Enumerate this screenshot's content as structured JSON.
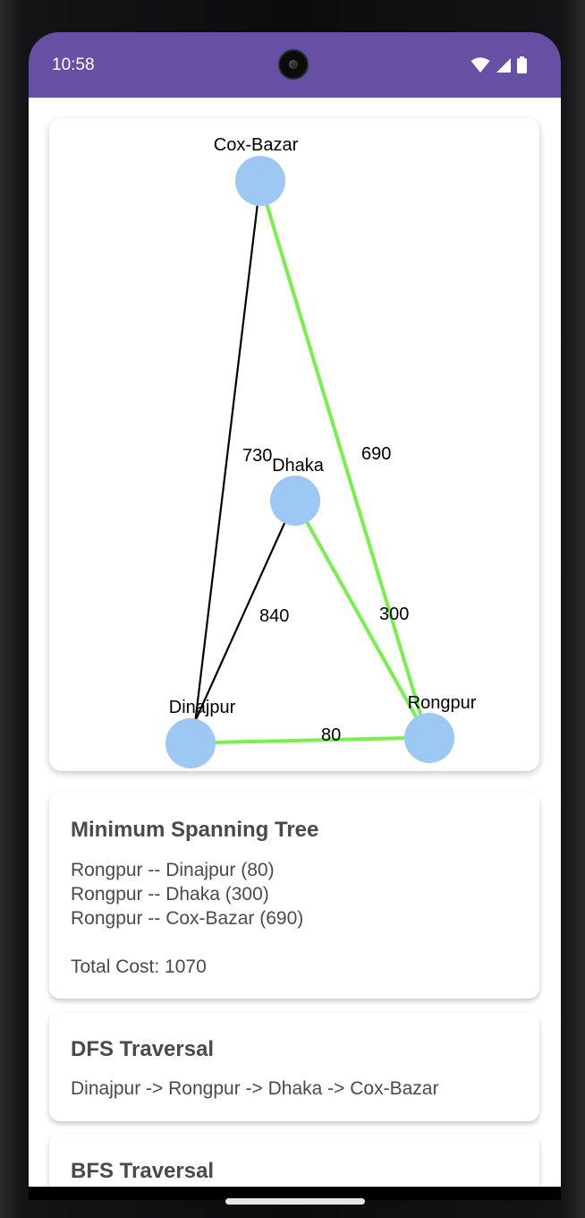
{
  "status_bar": {
    "time": "10:58"
  },
  "graph": {
    "nodes": [
      {
        "name": "Cox-Bazar"
      },
      {
        "name": "Dhaka"
      },
      {
        "name": "Dinajpur"
      },
      {
        "name": "Rongpur"
      }
    ],
    "edges": [
      {
        "from": "Dinajpur",
        "to": "Cox-Bazar",
        "weight": "730",
        "in_mst": false
      },
      {
        "from": "Rongpur",
        "to": "Cox-Bazar",
        "weight": "690",
        "in_mst": true
      },
      {
        "from": "Dinajpur",
        "to": "Dhaka",
        "weight": "840",
        "in_mst": false
      },
      {
        "from": "Dhaka",
        "to": "Rongpur",
        "weight": "300",
        "in_mst": true
      },
      {
        "from": "Dinajpur",
        "to": "Rongpur",
        "weight": "80",
        "in_mst": true
      }
    ],
    "colors": {
      "node": "#9ec8f4",
      "mst_edge": "#77f04c",
      "edge": "#000000"
    }
  },
  "mst_card": {
    "title": "Minimum Spanning Tree",
    "lines": [
      "Rongpur -- Dinajpur (80)",
      "Rongpur -- Dhaka (300)",
      "Rongpur -- Cox-Bazar (690)"
    ],
    "total": "Total Cost: 1070"
  },
  "dfs_card": {
    "title": "DFS Traversal",
    "text": "Dinajpur -> Rongpur -> Dhaka -> Cox-Bazar"
  },
  "bfs_card": {
    "title": "BFS Traversal"
  }
}
